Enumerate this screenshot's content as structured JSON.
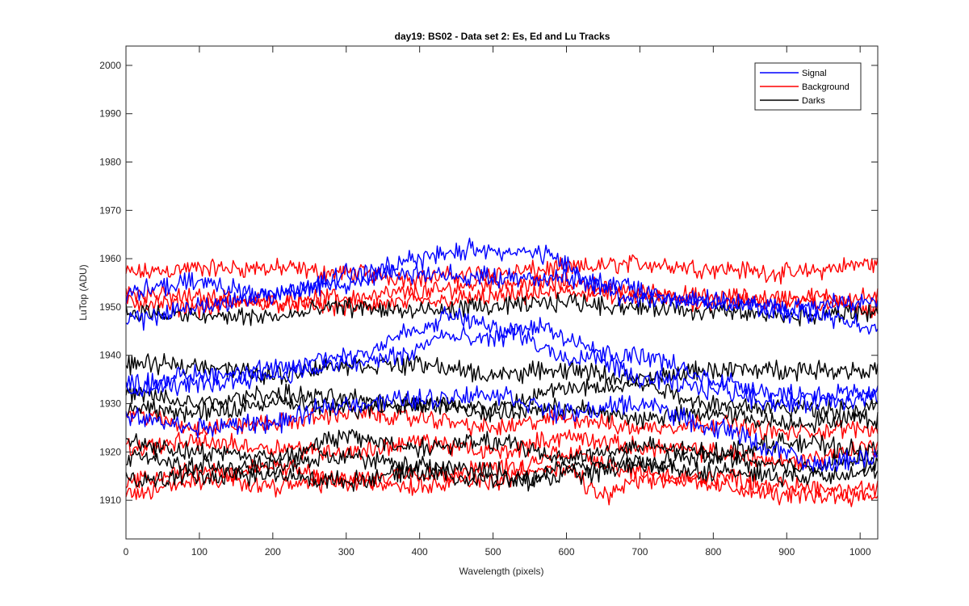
{
  "chart_data": {
    "type": "line",
    "title": "day19: BS02 - Data set 2: Es, Ed and Lu Tracks",
    "xlabel": "Wavelength (pixels)",
    "ylabel": "LuTop (ADU)",
    "xlim": [
      0,
      1024
    ],
    "ylim": [
      1902,
      2004
    ],
    "xticks": [
      0,
      100,
      200,
      300,
      400,
      500,
      600,
      700,
      800,
      900,
      1000
    ],
    "yticks": [
      1910,
      1920,
      1930,
      1940,
      1950,
      1960,
      1970,
      1980,
      1990,
      2000
    ],
    "legend_position": "top-right",
    "series": [
      {
        "name": "Signal",
        "color": "#0000ff",
        "noise": 1.6,
        "trace_keypoints": [
          [
            [
              0,
              1947
            ],
            [
              100,
              1950
            ],
            [
              200,
              1953
            ],
            [
              300,
              1955
            ],
            [
              400,
              1960
            ],
            [
              480,
              1962
            ],
            [
              560,
              1961
            ],
            [
              650,
              1955
            ],
            [
              750,
              1952
            ],
            [
              850,
              1950
            ],
            [
              950,
              1948
            ],
            [
              1024,
              1946
            ]
          ],
          [
            [
              0,
              1953
            ],
            [
              100,
              1955
            ],
            [
              200,
              1952
            ],
            [
              300,
              1957
            ],
            [
              400,
              1957
            ],
            [
              500,
              1956
            ],
            [
              600,
              1956
            ],
            [
              700,
              1952
            ],
            [
              800,
              1951
            ],
            [
              900,
              1950
            ],
            [
              1024,
              1951
            ]
          ],
          [
            [
              0,
              1934
            ],
            [
              100,
              1936
            ],
            [
              200,
              1937
            ],
            [
              300,
              1940
            ],
            [
              400,
              1945
            ],
            [
              440,
              1948
            ],
            [
              520,
              1945
            ],
            [
              600,
              1940
            ],
            [
              700,
              1940
            ],
            [
              800,
              1935
            ],
            [
              900,
              1932
            ],
            [
              1024,
              1932
            ]
          ],
          [
            [
              0,
              1933
            ],
            [
              100,
              1934
            ],
            [
              200,
              1936
            ],
            [
              300,
              1938
            ],
            [
              380,
              1940
            ],
            [
              430,
              1944
            ],
            [
              480,
              1943
            ],
            [
              560,
              1946
            ],
            [
              620,
              1942
            ],
            [
              700,
              1935
            ],
            [
              800,
              1933
            ],
            [
              900,
              1930
            ],
            [
              1024,
              1931
            ]
          ],
          [
            [
              0,
              1927
            ],
            [
              100,
              1925
            ],
            [
              200,
              1926
            ],
            [
              300,
              1930
            ],
            [
              400,
              1931
            ],
            [
              500,
              1932
            ],
            [
              600,
              1928
            ],
            [
              700,
              1930
            ],
            [
              800,
              1925
            ],
            [
              900,
              1920
            ],
            [
              930,
              1917
            ],
            [
              1024,
              1919
            ]
          ]
        ]
      },
      {
        "name": "Background",
        "color": "#ff0000",
        "noise": 1.5,
        "trace_keypoints": [
          [
            [
              0,
              1957
            ],
            [
              100,
              1958
            ],
            [
              200,
              1958
            ],
            [
              300,
              1957
            ],
            [
              400,
              1956
            ],
            [
              500,
              1957
            ],
            [
              600,
              1958
            ],
            [
              700,
              1959
            ],
            [
              800,
              1958
            ],
            [
              900,
              1957
            ],
            [
              1024,
              1959
            ]
          ],
          [
            [
              0,
              1953
            ],
            [
              100,
              1952
            ],
            [
              200,
              1951
            ],
            [
              300,
              1952
            ],
            [
              400,
              1953
            ],
            [
              500,
              1955
            ],
            [
              600,
              1955
            ],
            [
              700,
              1953
            ],
            [
              800,
              1952
            ],
            [
              900,
              1952
            ],
            [
              1024,
              1952
            ]
          ],
          [
            [
              0,
              1951
            ],
            [
              100,
              1950
            ],
            [
              200,
              1951
            ],
            [
              300,
              1950
            ],
            [
              400,
              1951
            ],
            [
              500,
              1952
            ],
            [
              600,
              1953
            ],
            [
              700,
              1952
            ],
            [
              800,
              1951
            ],
            [
              900,
              1951
            ],
            [
              1024,
              1950
            ]
          ],
          [
            [
              0,
              1928
            ],
            [
              100,
              1925
            ],
            [
              200,
              1926
            ],
            [
              300,
              1928
            ],
            [
              400,
              1927
            ],
            [
              500,
              1925
            ],
            [
              600,
              1927
            ],
            [
              700,
              1925
            ],
            [
              800,
              1926
            ],
            [
              900,
              1924
            ],
            [
              1024,
              1925
            ]
          ],
          [
            [
              0,
              1921
            ],
            [
              100,
              1922
            ],
            [
              200,
              1921
            ],
            [
              300,
              1920
            ],
            [
              400,
              1922
            ],
            [
              500,
              1920
            ],
            [
              600,
              1923
            ],
            [
              700,
              1921
            ],
            [
              800,
              1920
            ],
            [
              900,
              1918
            ],
            [
              1024,
              1921
            ]
          ],
          [
            [
              0,
              1914
            ],
            [
              100,
              1916
            ],
            [
              200,
              1913
            ],
            [
              300,
              1914
            ],
            [
              400,
              1913
            ],
            [
              500,
              1917
            ],
            [
              600,
              1916
            ],
            [
              650,
              1911
            ],
            [
              700,
              1914
            ],
            [
              800,
              1915
            ],
            [
              900,
              1913
            ],
            [
              1024,
              1912
            ]
          ],
          [
            [
              0,
              1911
            ],
            [
              100,
              1914
            ],
            [
              200,
              1917
            ],
            [
              300,
              1914
            ],
            [
              400,
              1916
            ],
            [
              500,
              1914
            ],
            [
              600,
              1920
            ],
            [
              700,
              1916
            ],
            [
              800,
              1913
            ],
            [
              900,
              1911
            ],
            [
              1024,
              1911
            ]
          ]
        ]
      },
      {
        "name": "Darks",
        "color": "#000000",
        "noise": 1.5,
        "trace_keypoints": [
          [
            [
              0,
              1949
            ],
            [
              100,
              1948
            ],
            [
              200,
              1948
            ],
            [
              300,
              1950
            ],
            [
              400,
              1949
            ],
            [
              500,
              1950
            ],
            [
              600,
              1951
            ],
            [
              700,
              1950
            ],
            [
              800,
              1949
            ],
            [
              900,
              1948
            ],
            [
              1024,
              1949
            ]
          ],
          [
            [
              0,
              1938
            ],
            [
              100,
              1938
            ],
            [
              200,
              1936
            ],
            [
              300,
              1938
            ],
            [
              400,
              1938
            ],
            [
              500,
              1936
            ],
            [
              600,
              1937
            ],
            [
              700,
              1935
            ],
            [
              800,
              1937
            ],
            [
              900,
              1937
            ],
            [
              1024,
              1937
            ]
          ],
          [
            [
              0,
              1932
            ],
            [
              100,
              1930
            ],
            [
              200,
              1932
            ],
            [
              300,
              1931
            ],
            [
              400,
              1930
            ],
            [
              500,
              1929
            ],
            [
              600,
              1933
            ],
            [
              700,
              1934
            ],
            [
              800,
              1930
            ],
            [
              900,
              1929
            ],
            [
              1024,
              1929
            ]
          ],
          [
            [
              0,
              1929
            ],
            [
              100,
              1928
            ],
            [
              200,
              1930
            ],
            [
              300,
              1929
            ],
            [
              400,
              1930
            ],
            [
              500,
              1928
            ],
            [
              600,
              1929
            ],
            [
              700,
              1927
            ],
            [
              800,
              1928
            ],
            [
              900,
              1926
            ],
            [
              1024,
              1927
            ]
          ],
          [
            [
              0,
              1922
            ],
            [
              100,
              1920
            ],
            [
              200,
              1919
            ],
            [
              300,
              1923
            ],
            [
              400,
              1921
            ],
            [
              500,
              1922
            ],
            [
              600,
              1919
            ],
            [
              700,
              1921
            ],
            [
              800,
              1920
            ],
            [
              900,
              1922
            ],
            [
              1024,
              1920
            ]
          ],
          [
            [
              0,
              1919
            ],
            [
              100,
              1917
            ],
            [
              200,
              1917
            ],
            [
              300,
              1919
            ],
            [
              400,
              1917
            ],
            [
              500,
              1916
            ],
            [
              550,
              1914
            ],
            [
              600,
              1917
            ],
            [
              700,
              1918
            ],
            [
              800,
              1919
            ],
            [
              900,
              1917
            ],
            [
              1024,
              1918
            ]
          ],
          [
            [
              0,
              1914
            ],
            [
              100,
              1915
            ],
            [
              200,
              1915
            ],
            [
              300,
              1914
            ],
            [
              400,
              1916
            ],
            [
              500,
              1914
            ],
            [
              600,
              1915
            ],
            [
              700,
              1917
            ],
            [
              800,
              1916
            ],
            [
              900,
              1915
            ],
            [
              1024,
              1916
            ]
          ]
        ]
      }
    ]
  }
}
